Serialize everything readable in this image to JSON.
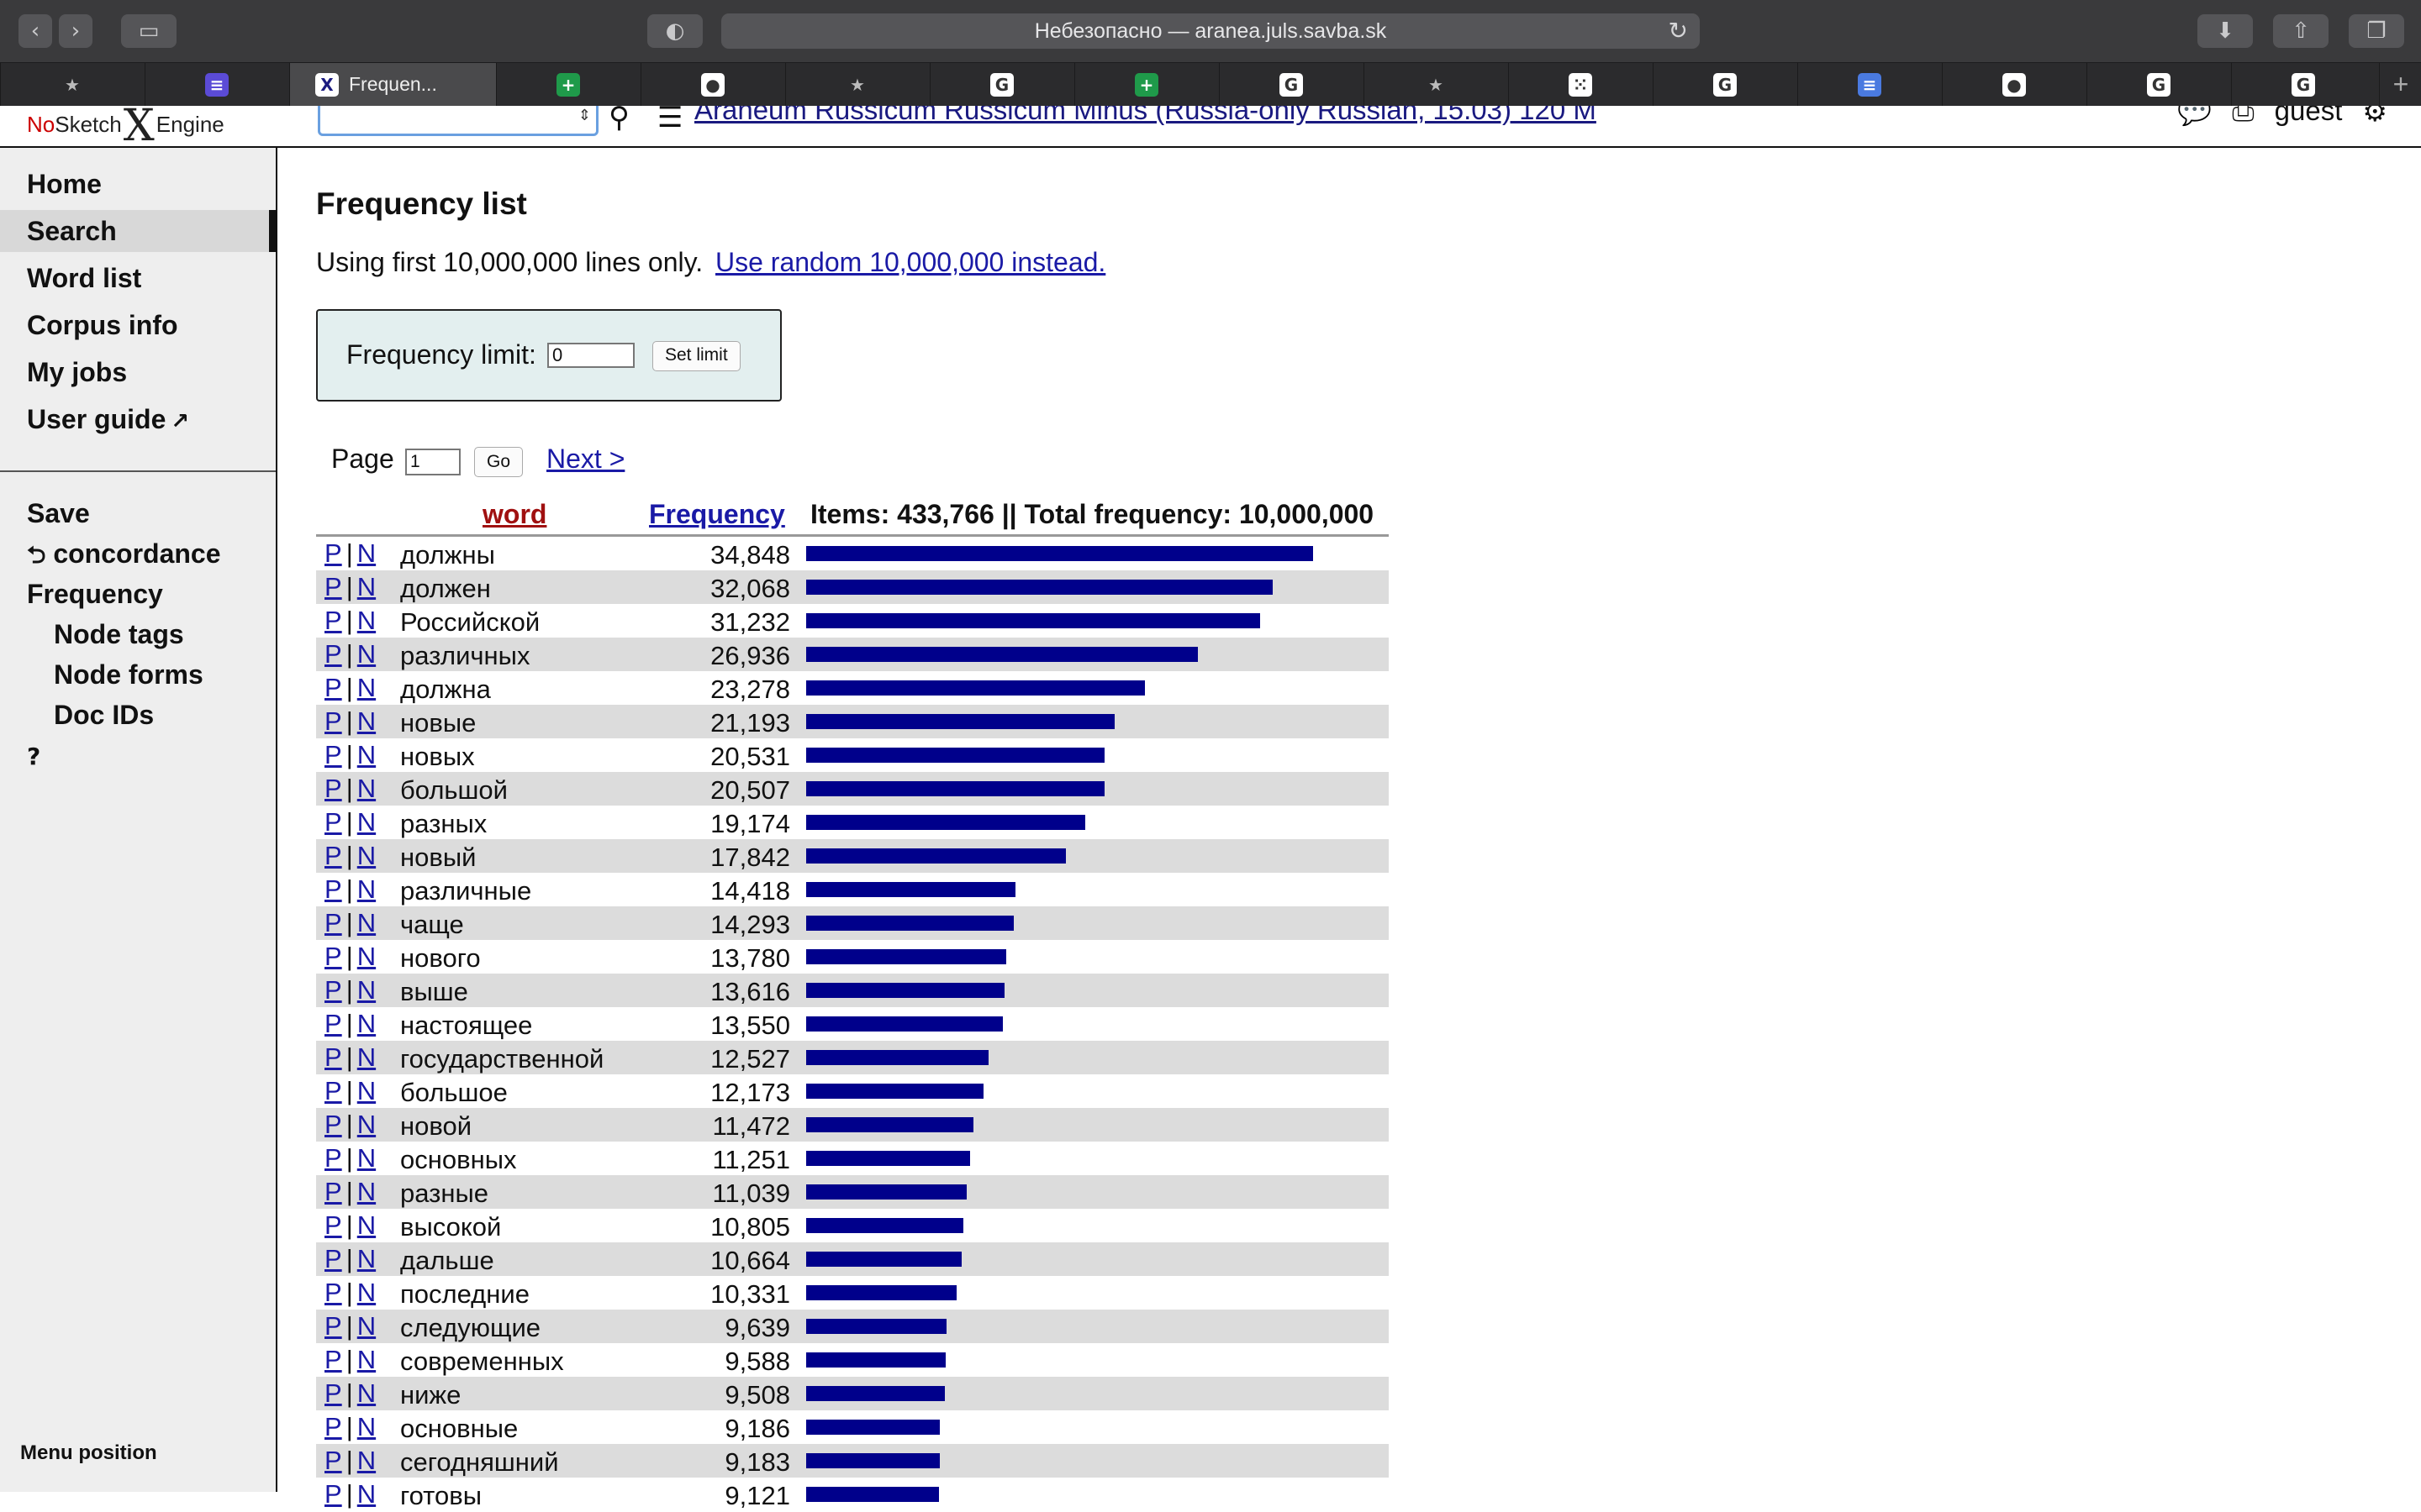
{
  "browser": {
    "address_text": "Небезопасно — aranea.juls.savba.sk",
    "active_tab_label": "Frequen...",
    "tabs": [
      {
        "icon": "star",
        "color": "#3d3d3f",
        "glyph": "★"
      },
      {
        "icon": "list",
        "color": "#5b4bd6",
        "glyph": "≡"
      },
      {
        "icon": "sketch-engine",
        "active": true
      },
      {
        "icon": "sheets-plus",
        "color": "#1f9a4a",
        "glyph": "+"
      },
      {
        "icon": "github",
        "color": "#ffffff",
        "glyph": "●"
      },
      {
        "icon": "star",
        "color": "#3d3d3f",
        "glyph": "★"
      },
      {
        "icon": "google",
        "color": "#ffffff",
        "glyph": "G"
      },
      {
        "icon": "sheets-plus",
        "color": "#1f9a4a",
        "glyph": "+"
      },
      {
        "icon": "google",
        "color": "#ffffff",
        "glyph": "G"
      },
      {
        "icon": "star",
        "color": "#3d3d3f",
        "glyph": "★"
      },
      {
        "icon": "dice",
        "color": "#ffffff",
        "glyph": "⁙"
      },
      {
        "icon": "google",
        "color": "#ffffff",
        "glyph": "G"
      },
      {
        "icon": "docs",
        "color": "#4a7ae0",
        "glyph": "≡"
      },
      {
        "icon": "github",
        "color": "#ffffff",
        "glyph": "●"
      },
      {
        "icon": "google",
        "color": "#ffffff",
        "glyph": "G"
      },
      {
        "icon": "google",
        "color": "#ffffff",
        "glyph": "G"
      }
    ]
  },
  "header": {
    "logo_no": "No",
    "logo_sketch": "Sketch",
    "logo_x": "X",
    "logo_engine": "Engine",
    "corpus_name": "Araneum Russicum Russicum Minus (Russia-only Russian, 15.03) 120 M",
    "user": "guest"
  },
  "sidebar": {
    "items": [
      "Home",
      "Search",
      "Word list",
      "Corpus info",
      "My jobs",
      "User guide"
    ],
    "save_label": "Save",
    "concordance_label": "concordance",
    "frequency_label": "Frequency",
    "sub_items": [
      "Node tags",
      "Node forms",
      "Doc IDs"
    ],
    "menu_position": "Menu position"
  },
  "main": {
    "title": "Frequency list",
    "notice_text": "Using first 10,000,000 lines only.",
    "notice_link": "Use random 10,000,000 instead.",
    "freq_limit_label": "Frequency limit:",
    "freq_limit_value": "0",
    "set_limit_label": "Set limit",
    "page_label": "Page",
    "page_value": "1",
    "go_label": "Go",
    "next_label": "Next >"
  },
  "table": {
    "col_word": "word",
    "col_freq": "Frequency",
    "summary": "Items: 433,766 || Total frequency: 10,000,000",
    "p_label": "P",
    "n_label": "N",
    "sep": "|",
    "rows": [
      {
        "word": "должны",
        "freq": "34,848",
        "value": 34848
      },
      {
        "word": "должен",
        "freq": "32,068",
        "value": 32068
      },
      {
        "word": "Российской",
        "freq": "31,232",
        "value": 31232
      },
      {
        "word": "различных",
        "freq": "26,936",
        "value": 26936
      },
      {
        "word": "должна",
        "freq": "23,278",
        "value": 23278
      },
      {
        "word": "новые",
        "freq": "21,193",
        "value": 21193
      },
      {
        "word": "новых",
        "freq": "20,531",
        "value": 20531
      },
      {
        "word": "большой",
        "freq": "20,507",
        "value": 20507
      },
      {
        "word": "разных",
        "freq": "19,174",
        "value": 19174
      },
      {
        "word": "новый",
        "freq": "17,842",
        "value": 17842
      },
      {
        "word": "различные",
        "freq": "14,418",
        "value": 14418
      },
      {
        "word": "чаще",
        "freq": "14,293",
        "value": 14293
      },
      {
        "word": "нового",
        "freq": "13,780",
        "value": 13780
      },
      {
        "word": "выше",
        "freq": "13,616",
        "value": 13616
      },
      {
        "word": "настоящее",
        "freq": "13,550",
        "value": 13550
      },
      {
        "word": "государственной",
        "freq": "12,527",
        "value": 12527
      },
      {
        "word": "большое",
        "freq": "12,173",
        "value": 12173
      },
      {
        "word": "новой",
        "freq": "11,472",
        "value": 11472
      },
      {
        "word": "основных",
        "freq": "11,251",
        "value": 11251
      },
      {
        "word": "разные",
        "freq": "11,039",
        "value": 11039
      },
      {
        "word": "высокой",
        "freq": "10,805",
        "value": 10805
      },
      {
        "word": "дальше",
        "freq": "10,664",
        "value": 10664
      },
      {
        "word": "последние",
        "freq": "10,331",
        "value": 10331
      },
      {
        "word": "следующие",
        "freq": "9,639",
        "value": 9639
      },
      {
        "word": "современных",
        "freq": "9,588",
        "value": 9588
      },
      {
        "word": "ниже",
        "freq": "9,508",
        "value": 9508
      },
      {
        "word": "основные",
        "freq": "9,186",
        "value": 9186
      },
      {
        "word": "сегодняшний",
        "freq": "9,183",
        "value": 9183
      },
      {
        "word": "готовы",
        "freq": "9,121",
        "value": 9121
      }
    ]
  }
}
